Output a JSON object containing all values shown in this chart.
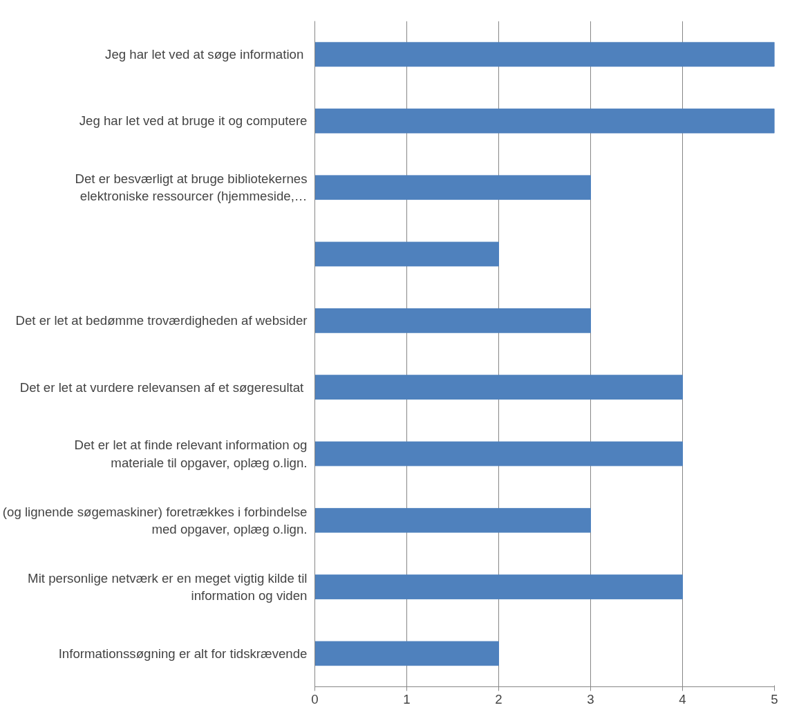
{
  "chart_data": {
    "type": "bar",
    "orientation": "horizontal",
    "categories": [
      "Jeg  har let ved at søge information",
      "Jeg har let ved at bruge it og computere",
      "Det er besværligt at bruge bibliotekernes elektroniske ressourcer (hjemmeside,…",
      null,
      "Det er let at bedømme troværdigheden af websider",
      "Det er let at vurdere relevansen af  et søgeresultat",
      "Det er let at finde relevant information og materiale til opgaver, oplæg o.lign.",
      "(og lignende søgemaskiner) foretrækkes i forbindelse med opgaver, oplæg o.lign.",
      "Mit personlige netværk er en meget vigtig kilde til information og viden",
      "Informationssøgning er alt for tidskrævende"
    ],
    "values": [
      5,
      5,
      3,
      2,
      3,
      4,
      4,
      3,
      4,
      2
    ],
    "color": "#4f81bd",
    "xlim": [
      0,
      5
    ],
    "xticks": [
      0,
      1,
      2,
      3,
      4,
      5
    ],
    "grid": "x"
  }
}
